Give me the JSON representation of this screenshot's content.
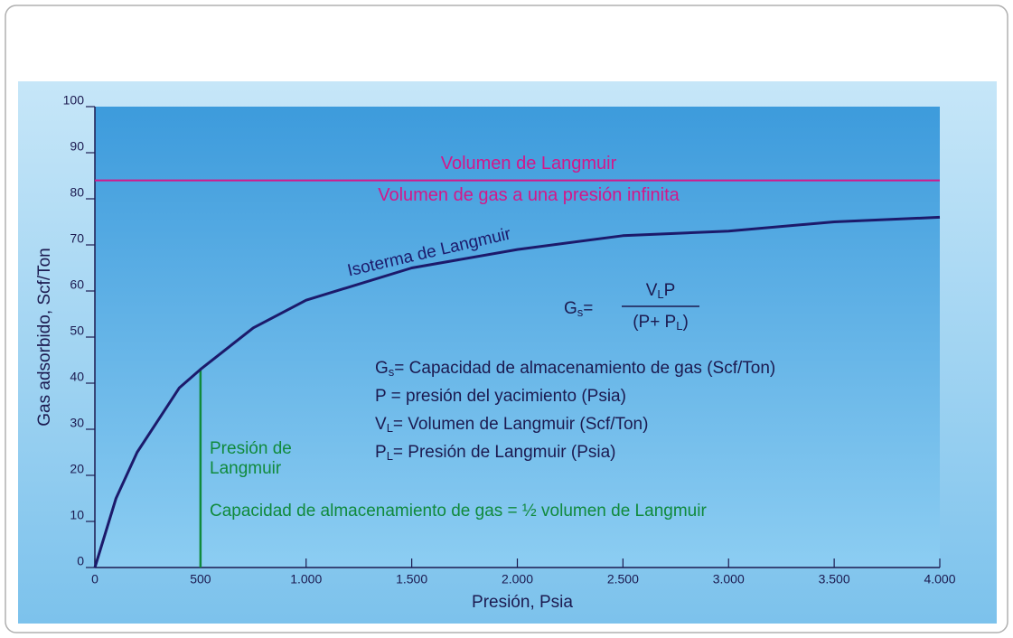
{
  "chart_data": {
    "type": "line",
    "xlabel": "Presión, Psia",
    "ylabel": "Gas adsorbido, Scf/Ton",
    "x": [
      0,
      100,
      200,
      300,
      400,
      500,
      750,
      1000,
      1500,
      2000,
      2500,
      3000,
      3500,
      4000
    ],
    "series": [
      {
        "name": "Isoterma de Langmuir",
        "color": "#1c1a6b",
        "values": [
          0,
          15,
          25,
          32,
          39,
          43,
          52,
          58,
          65,
          69,
          72,
          73,
          75,
          76
        ]
      }
    ],
    "xlim": [
      0,
      4000
    ],
    "ylim": [
      0,
      100
    ],
    "xticks": [
      0,
      500,
      {
        "value": 1000,
        "label": "1.000"
      },
      {
        "value": 1500,
        "label": "1.500"
      },
      {
        "value": 2000,
        "label": "2.000"
      },
      {
        "value": 2500,
        "label": "2.500"
      },
      {
        "value": 3000,
        "label": "3.000"
      },
      {
        "value": 3500,
        "label": "3.500"
      },
      {
        "value": 4000,
        "label": "4.000"
      }
    ],
    "yticks": [
      0,
      10,
      20,
      30,
      40,
      50,
      60,
      70,
      80,
      90,
      100
    ],
    "langmuir_volume": {
      "value": 84,
      "color": "#d3178a",
      "label": "Volumen de Langmuir",
      "sublabel": "Volumen de gas a una presión infinita"
    },
    "langmuir_pressure": {
      "x": 500,
      "top": 43,
      "color": "#108a3c",
      "label_lines": [
        "Presión de",
        "Langmuir"
      ],
      "note": "Capacidad de almacenamiento de gas = ½ volumen de Langmuir"
    },
    "formula": {
      "lhs": "G",
      "lhs_sub": "s",
      "eq": "=",
      "num": "V",
      "num_sub": "L",
      "num_rest": "P",
      "den": "(P+ P",
      "den_sub": "L",
      "den_close": ")"
    },
    "definitions": [
      {
        "symbol": "G",
        "sub": "s",
        "text": "= Capacidad de almacenamiento de gas (Scf/Ton)"
      },
      {
        "symbol": "P",
        "text": " = presión del yacimiento (Psia)"
      },
      {
        "symbol": "V",
        "sub": "L",
        "text": "= Volumen de Langmuir (Scf/Ton)"
      },
      {
        "symbol": "P",
        "sub": "L",
        "text": "= Presión de Langmuir (Psia)"
      }
    ]
  }
}
